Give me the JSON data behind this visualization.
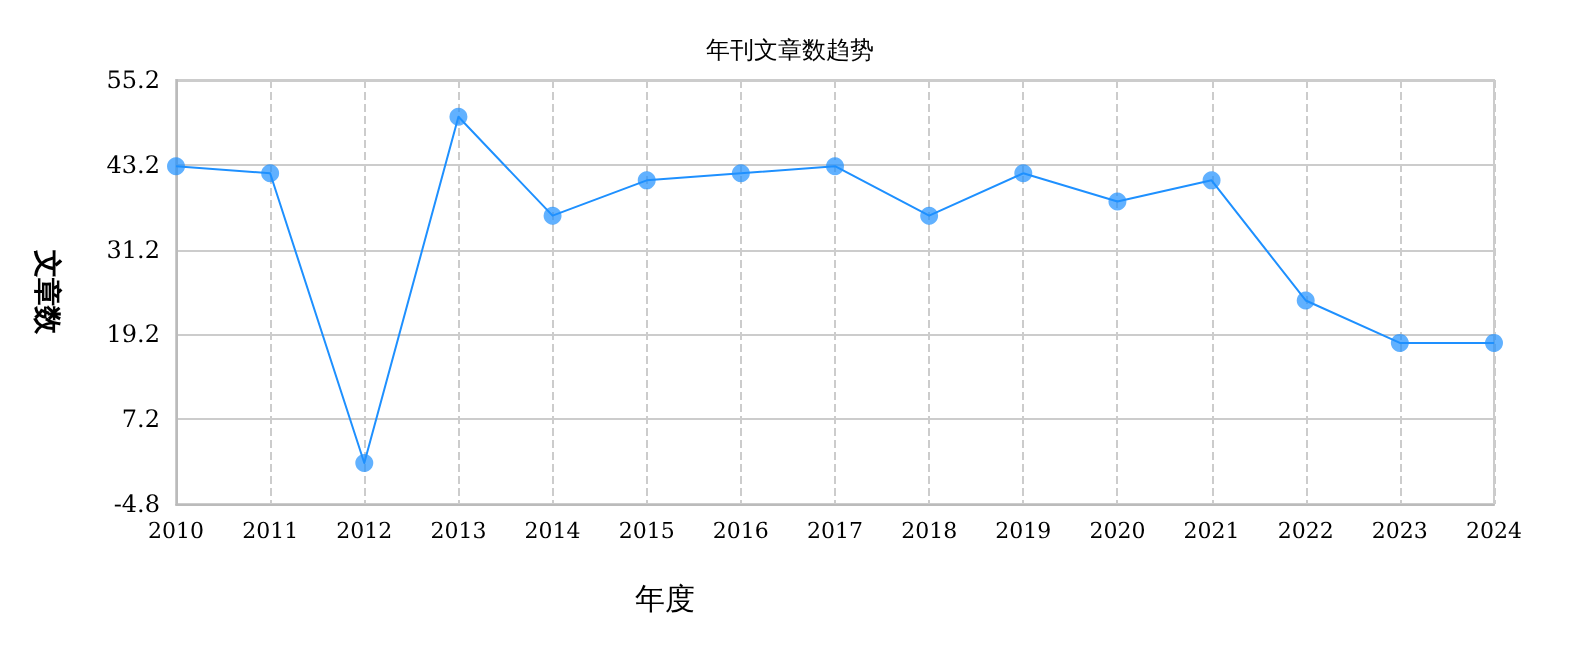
{
  "chart_data": {
    "type": "line",
    "title": "年刊文章数趋势",
    "xlabel": "年度",
    "ylabel": "文章数",
    "categories": [
      "2010",
      "2011",
      "2012",
      "2013",
      "2014",
      "2015",
      "2016",
      "2017",
      "2018",
      "2019",
      "2020",
      "2021",
      "2022",
      "2023",
      "2024"
    ],
    "series": [
      {
        "color": "#1e90ff",
        "values": [
          43,
          42,
          1,
          50,
          36,
          41,
          42,
          43,
          36,
          42,
          38,
          41,
          24,
          18,
          18
        ]
      }
    ],
    "ylim": [
      -4.8,
      55.2
    ],
    "yticks": [
      -4.8,
      7.2,
      19.2,
      31.2,
      43.2,
      55.2
    ],
    "grid": true,
    "marker": "circle",
    "line_style": "solid"
  }
}
